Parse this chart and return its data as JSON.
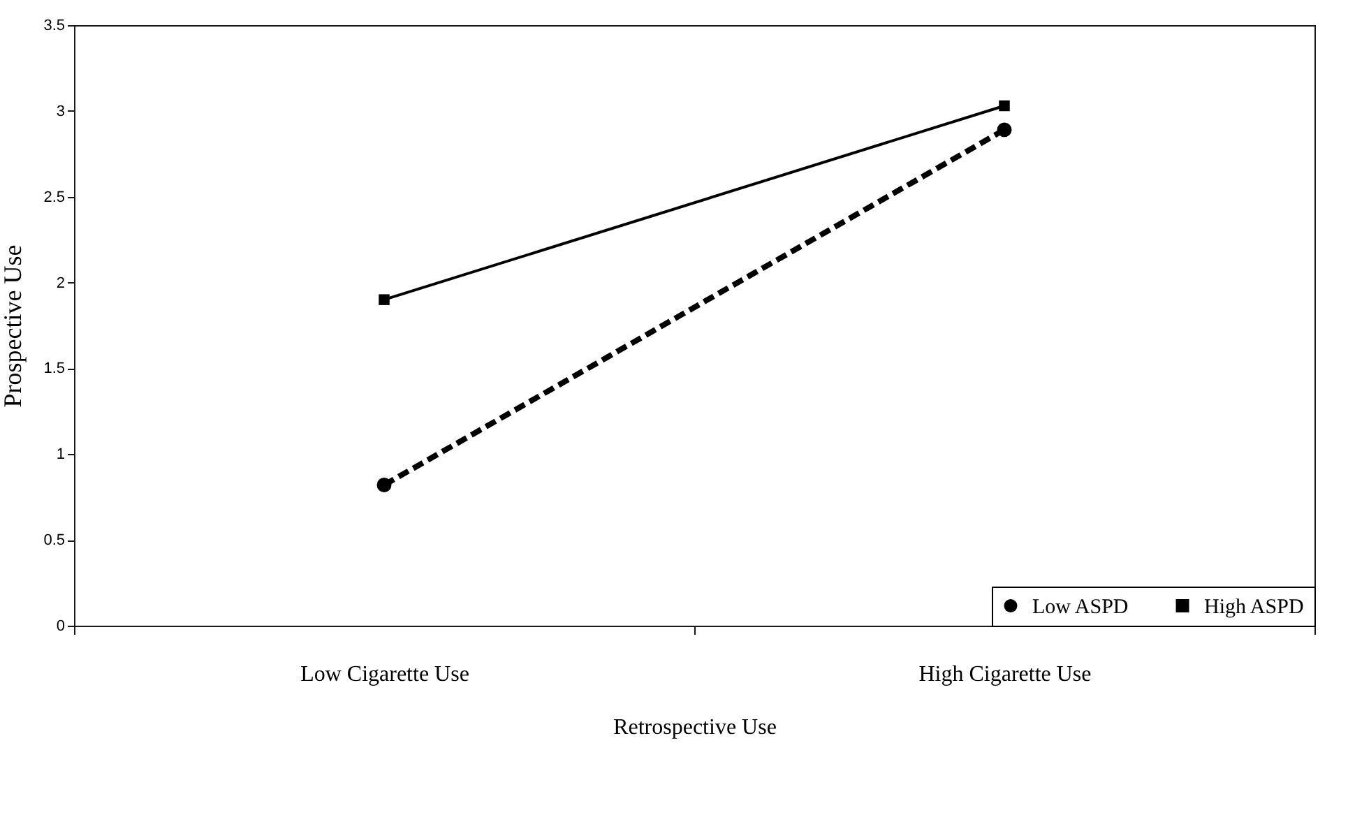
{
  "chart_data": {
    "type": "line",
    "xlabel": "Retrospective Use",
    "ylabel": "Prospective Use",
    "categories": [
      "Low Cigarette Use",
      "High Cigarette Use"
    ],
    "series": [
      {
        "name": "Low ASPD",
        "color": "#000000",
        "values": [
          0.82,
          2.89
        ],
        "marker": "circle",
        "line_style": "dashed"
      },
      {
        "name": "High ASPD",
        "color": "#000000",
        "values": [
          1.9,
          3.03
        ],
        "marker": "square",
        "line_style": "solid"
      }
    ],
    "ylim": [
      0,
      3.5
    ],
    "yticks": [
      0,
      0.5,
      1,
      1.5,
      2,
      2.5,
      3,
      3.5
    ],
    "grid": false,
    "legend": "bottom right"
  }
}
